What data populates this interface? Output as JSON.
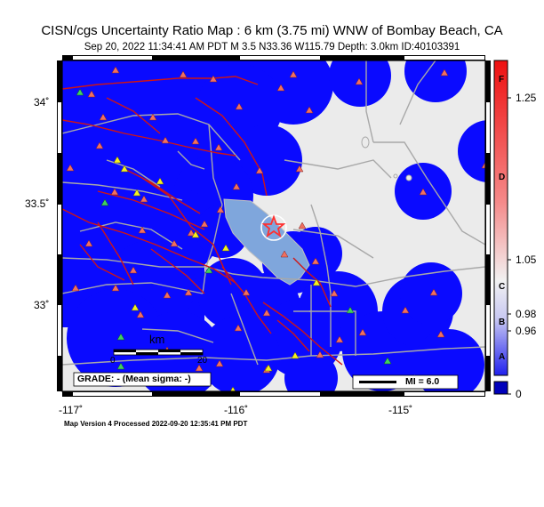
{
  "title": "CISN/cgs Uncertainty Ratio Map : 6 km (3.75 mi) WNW of Bombay Beach, CA",
  "subtitle": "Sep 20, 2022 11:34:41 AM PDT   M 3.5   N33.36 W115.79   Depth: 3.0km   ID:40103391",
  "footer": "Map Version 4 Processed 2022-09-20 12:35:41 PM PDT",
  "map": {
    "lat_ticks": [
      "34˚",
      "33.5˚",
      "33˚"
    ],
    "lon_ticks": [
      "-117˚",
      "-116˚",
      "-115˚"
    ],
    "scalebar_label": "km",
    "scalebar_ticks": [
      "0",
      "20"
    ],
    "grade_text": "GRADE: - (Mean sigma: -)",
    "mi_legend": "MI = 6.0",
    "colors": {
      "background": "#ebebeb",
      "coverage": "#0a0aff",
      "lake": "#7fa6dc",
      "faults": "#d01515",
      "roads": "#a8a8a8",
      "epicenter": "#ff3030"
    }
  },
  "colorbar": {
    "values": [
      "1.25",
      "1.05",
      "0.98",
      "0.96",
      "0"
    ],
    "grades": [
      "F",
      "D",
      "C",
      "B",
      "A"
    ],
    "colors": {
      "top": "#ee1010",
      "mid": "#f2f2f2",
      "bottom": "#2020ee",
      "zero": "#0000bb"
    }
  }
}
